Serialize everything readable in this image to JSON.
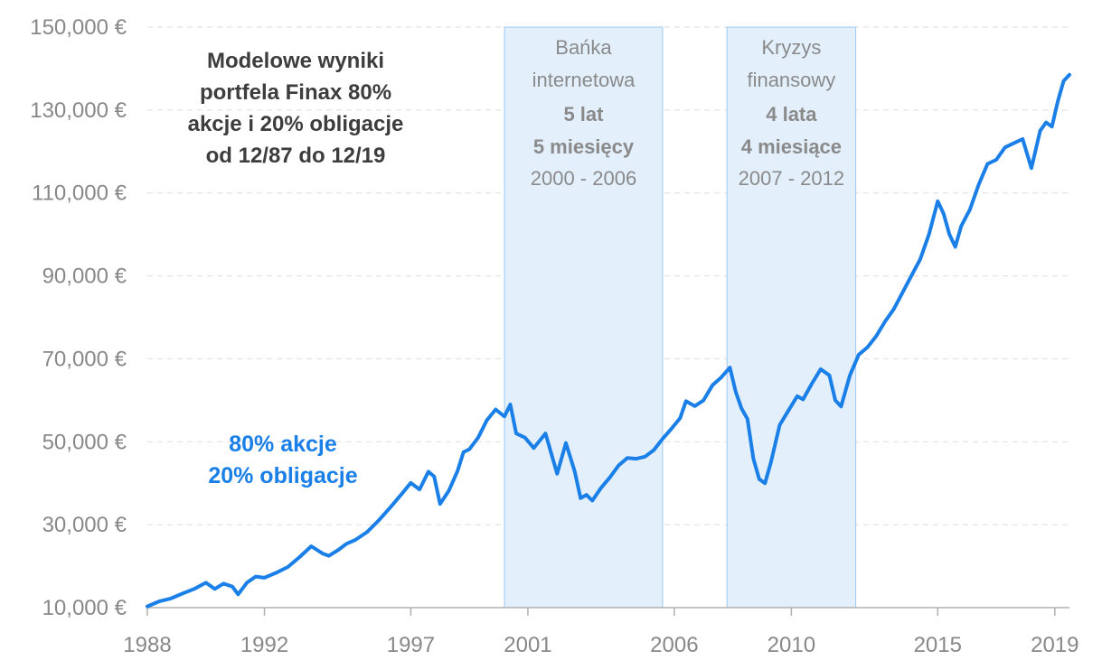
{
  "chart_data": {
    "type": "line",
    "title_lines": [
      "Modelowe wyniki",
      "portfela Finax 80%",
      "akcje i 20% obligacje",
      "od 12/87 do 12/19"
    ],
    "xlabel": "",
    "ylabel": "",
    "x_ticks": [
      "1988",
      "1992",
      "1997",
      "2001",
      "2006",
      "2010",
      "2015",
      "2019"
    ],
    "y_ticks": [
      "10,000 €",
      "30,000 €",
      "50,000 €",
      "70,000 €",
      "90,000 €",
      "110,000 €",
      "130,000 €",
      "150,000 €"
    ],
    "ylim": [
      10000,
      150000
    ],
    "xlim": [
      1988,
      2019.5
    ],
    "grid": "horizontal dashed",
    "series": [
      {
        "name": "80% akcje 20% obligacje",
        "label_lines": [
          "80% akcje",
          "20% obligacje"
        ],
        "color": "#1a7fe6",
        "x": [
          1988.0,
          1988.4,
          1988.8,
          1989.2,
          1989.6,
          1990.0,
          1990.3,
          1990.6,
          1990.9,
          1991.1,
          1991.4,
          1991.7,
          1992.0,
          1992.4,
          1992.8,
          1993.2,
          1993.6,
          1994.0,
          1994.2,
          1994.5,
          1994.8,
          1995.1,
          1995.5,
          1995.9,
          1996.3,
          1996.7,
          1997.0,
          1997.3,
          1997.6,
          1997.8,
          1998.0,
          1998.3,
          1998.6,
          1998.8,
          1999.0,
          1999.3,
          1999.6,
          1999.9,
          2000.2,
          2000.4,
          2000.6,
          2000.9,
          2001.2,
          2001.6,
          2002.0,
          2002.3,
          2002.6,
          2002.8,
          2003.0,
          2003.2,
          2003.5,
          2003.8,
          2004.1,
          2004.4,
          2004.7,
          2005.0,
          2005.3,
          2005.6,
          2005.9,
          2006.2,
          2006.4,
          2006.7,
          2007.0,
          2007.3,
          2007.6,
          2007.9,
          2008.1,
          2008.3,
          2008.5,
          2008.7,
          2008.9,
          2009.1,
          2009.3,
          2009.6,
          2009.9,
          2010.2,
          2010.4,
          2010.7,
          2011.0,
          2011.3,
          2011.5,
          2011.7,
          2012.0,
          2012.3,
          2012.6,
          2012.9,
          2013.2,
          2013.5,
          2013.8,
          2014.1,
          2014.4,
          2014.7,
          2015.0,
          2015.2,
          2015.4,
          2015.6,
          2015.8,
          2016.1,
          2016.4,
          2016.7,
          2017.0,
          2017.3,
          2017.6,
          2017.9,
          2018.2,
          2018.5,
          2018.7,
          2018.9,
          2019.1,
          2019.3,
          2019.5
        ],
        "values": [
          10300,
          11500,
          12200,
          13400,
          14500,
          16000,
          14500,
          15800,
          15100,
          13200,
          16000,
          17500,
          17200,
          18400,
          19800,
          22200,
          24800,
          23000,
          22500,
          23800,
          25400,
          26300,
          28200,
          31000,
          34200,
          37500,
          40100,
          38500,
          42800,
          41600,
          35000,
          38200,
          43000,
          47500,
          48200,
          51000,
          55200,
          57800,
          56100,
          59000,
          52000,
          51000,
          48500,
          52000,
          42300,
          49700,
          42800,
          36400,
          37200,
          35800,
          38900,
          41400,
          44300,
          46100,
          45900,
          46400,
          48000,
          50700,
          53100,
          55700,
          59800,
          58600,
          60000,
          63600,
          65500,
          67900,
          62000,
          58000,
          55500,
          46000,
          41000,
          40000,
          45000,
          54000,
          57500,
          61000,
          60200,
          64000,
          67500,
          66000,
          60000,
          58500,
          66000,
          71000,
          72800,
          75500,
          79000,
          82000,
          86000,
          90000,
          94000,
          100000,
          108000,
          105000,
          100000,
          97000,
          102000,
          106000,
          112000,
          117000,
          118000,
          121000,
          122000,
          123000,
          116000,
          125000,
          127000,
          126000,
          132000,
          137000,
          138500
        ]
      }
    ],
    "shaded_regions": [
      {
        "x_start": 2000.2,
        "x_end": 2005.6,
        "lines": [
          "Bańka",
          "internetowa",
          "5 lat",
          "5 miesięcy",
          "2000 - 2006"
        ]
      },
      {
        "x_start": 2007.8,
        "x_end": 2012.2,
        "lines": [
          "Kryzys",
          "finansowy",
          "4 lata",
          "4 miesiące",
          "2007 - 2012"
        ]
      }
    ],
    "colors": {
      "line": "#1a7fe6",
      "band_fill": "#e3f0fc",
      "band_stroke": "#9dc8ef",
      "grid": "#dddddd",
      "tick_text": "#888888",
      "title_text": "#3d3d3d"
    }
  }
}
